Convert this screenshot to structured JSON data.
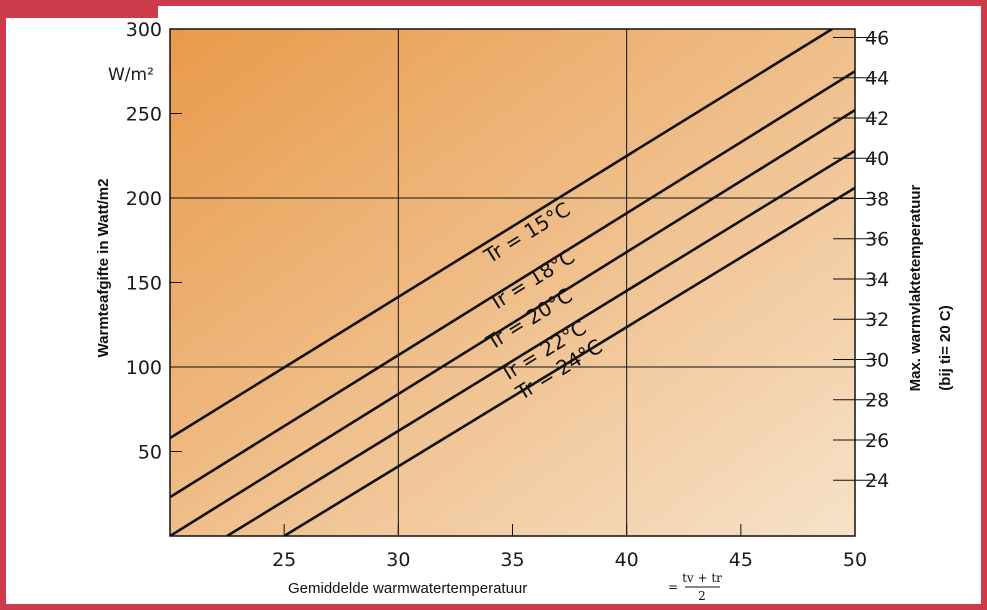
{
  "chart_data": {
    "type": "line",
    "xlabel": "Gemiddelde warmwatertemperatuur",
    "xlabel_formula": {
      "equals": "=",
      "numerator": "tv + tr",
      "denominator": "2"
    },
    "ylabel": "Warmteafgifte in Watt/m2",
    "y_unit": "W/m²",
    "right_axis_label": "Max. warmvlaktetemperatuur",
    "right_axis_note": "(bij ti= 20 C)",
    "xlim": [
      20,
      50
    ],
    "ylim": [
      0,
      300
    ],
    "x_ticks": [
      "25",
      "30",
      "35",
      "40",
      "45",
      "50"
    ],
    "y_ticks": [
      "50",
      "100",
      "150",
      "200",
      "250",
      "300"
    ],
    "right_ticks": [
      "24",
      "26",
      "28",
      "30",
      "32",
      "34",
      "36",
      "38",
      "40",
      "42",
      "44",
      "46"
    ],
    "right_tick_values": [
      24,
      26,
      28,
      30,
      32,
      34,
      36,
      38,
      40,
      42,
      44,
      46
    ],
    "right_tick_y_at": [
      33,
      295
    ],
    "grid": true,
    "series": [
      {
        "name": "Tr = 15°C",
        "x": [
          20,
          49
        ],
        "y": [
          58,
          300
        ]
      },
      {
        "name": "Tr = 18°C",
        "x": [
          20,
          50
        ],
        "y": [
          23,
          275
        ]
      },
      {
        "name": "Tr = 20°C",
        "x": [
          20,
          50
        ],
        "y": [
          0,
          252
        ]
      },
      {
        "name": "Tr = 22°C",
        "x": [
          22.5,
          50
        ],
        "y": [
          0,
          228
        ]
      },
      {
        "name": "Tr = 24°C",
        "x": [
          25,
          50
        ],
        "y": [
          0,
          206
        ]
      }
    ],
    "series_label_positions": [
      [
        35.8,
        176
      ],
      [
        36.0,
        148
      ],
      [
        35.9,
        125
      ],
      [
        36.5,
        106
      ],
      [
        37.2,
        95
      ]
    ]
  },
  "colors": {
    "frame": "#cd3b4c",
    "gradient_start": "#e89a4a",
    "gradient_end": "#f7e2c9",
    "lines": "#111111"
  }
}
